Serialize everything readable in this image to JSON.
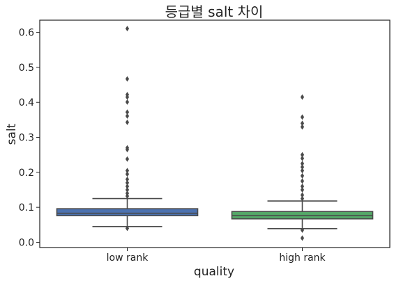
{
  "chart_data": {
    "type": "box",
    "title": "등급별 salt 차이",
    "xlabel": "quality",
    "ylabel": "salt",
    "categories": [
      "low rank",
      "high rank"
    ],
    "ylim": [
      -0.015,
      0.635
    ],
    "yticks": [
      0.0,
      0.1,
      0.2,
      0.3,
      0.4,
      0.5,
      0.6
    ],
    "ytick_labels": [
      "0.0",
      "0.1",
      "0.2",
      "0.3",
      "0.4",
      "0.5",
      "0.6"
    ],
    "grid": false,
    "legend": "none",
    "boxes": [
      {
        "category": "low rank",
        "color": "#4c72b0",
        "whisker_low": 0.045,
        "q1": 0.076,
        "median": 0.083,
        "q3": 0.096,
        "whisker_high": 0.125,
        "outliers": [
          0.611,
          0.467,
          0.422,
          0.415,
          0.401,
          0.372,
          0.361,
          0.343,
          0.27,
          0.265,
          0.238,
          0.205,
          0.195,
          0.18,
          0.17,
          0.16,
          0.15,
          0.14,
          0.132,
          0.04
        ]
      },
      {
        "category": "high rank",
        "color": "#55a868",
        "whisker_low": 0.039,
        "q1": 0.067,
        "median": 0.076,
        "q3": 0.088,
        "whisker_high": 0.118,
        "outliers": [
          0.415,
          0.358,
          0.34,
          0.33,
          0.25,
          0.24,
          0.225,
          0.215,
          0.205,
          0.19,
          0.175,
          0.16,
          0.15,
          0.135,
          0.125,
          0.035,
          0.012
        ]
      }
    ]
  }
}
